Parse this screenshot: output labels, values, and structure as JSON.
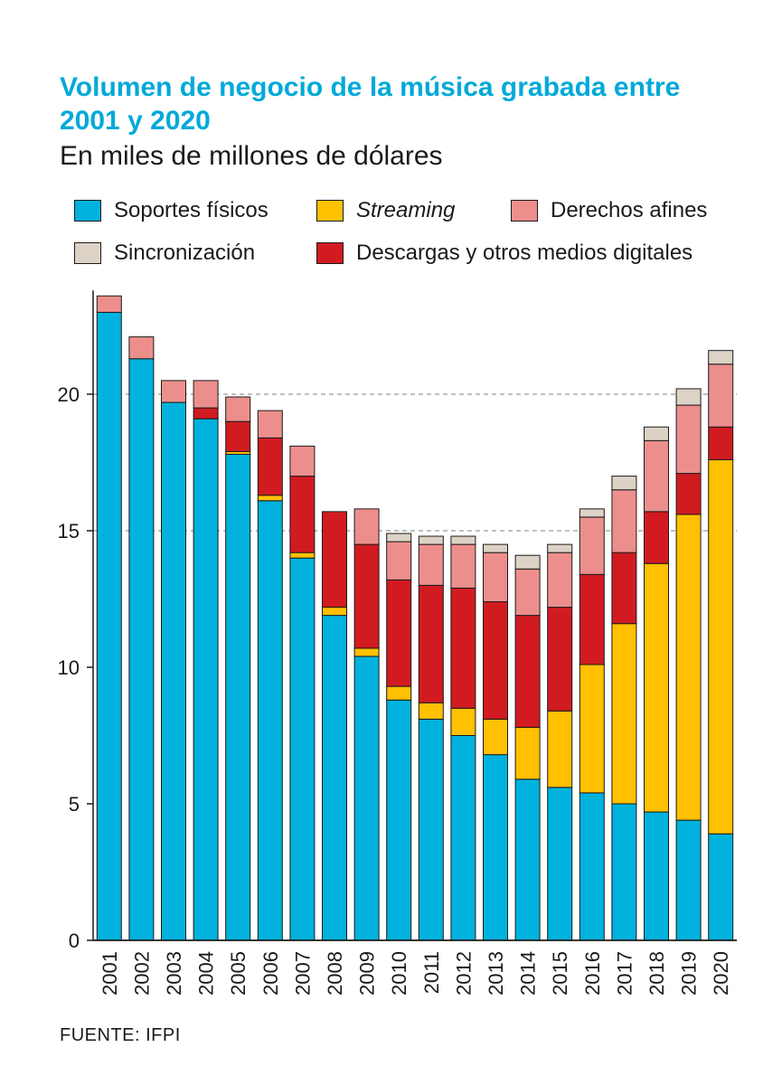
{
  "header": {
    "title": "Volumen de negocio de la música grabada entre 2001 y 2020",
    "subtitle": "En miles de millones de dólares"
  },
  "legend": {
    "physical": "Soportes físicos",
    "streaming": "Streaming",
    "rights": "Derechos afines",
    "sync": "Sincronización",
    "downloads": "Descargas y otros medios digitales"
  },
  "colors": {
    "physical": "#00b2dd",
    "streaming": "#ffc000",
    "rights": "#ec8f8c",
    "sync": "#dcd3c6",
    "downloads": "#d11b21",
    "gridline": "#999999",
    "axis": "#1a1a1a"
  },
  "source": "FUENTE: IFPI",
  "chart_data": {
    "type": "bar",
    "stacked": true,
    "title": "Volumen de negocio de la música grabada entre 2001 y 2020",
    "subtitle": "En miles de millones de dólares",
    "categories": [
      "2001",
      "2002",
      "2003",
      "2004",
      "2005",
      "2006",
      "2007",
      "2008",
      "2009",
      "2010",
      "2011",
      "2012",
      "2013",
      "2014",
      "2015",
      "2016",
      "2017",
      "2018",
      "2019",
      "2020"
    ],
    "series": [
      {
        "name": "Soportes físicos",
        "key": "physical",
        "values": [
          23.0,
          21.3,
          19.7,
          19.1,
          17.8,
          16.1,
          14.0,
          11.9,
          10.4,
          8.8,
          8.1,
          7.5,
          6.8,
          5.9,
          5.6,
          5.4,
          5.0,
          4.7,
          4.4,
          3.9
        ]
      },
      {
        "name": "Streaming",
        "key": "streaming",
        "values": [
          0,
          0,
          0,
          0,
          0.1,
          0.2,
          0.2,
          0.3,
          0.3,
          0.5,
          0.6,
          1.0,
          1.3,
          1.9,
          2.8,
          4.7,
          6.6,
          9.1,
          11.2,
          13.7
        ]
      },
      {
        "name": "Descargas y otros medios digitales",
        "key": "downloads",
        "values": [
          0,
          0,
          0,
          0.4,
          1.1,
          2.1,
          2.8,
          3.5,
          3.8,
          3.9,
          4.3,
          4.4,
          4.3,
          4.1,
          3.8,
          3.3,
          2.6,
          1.9,
          1.5,
          1.2
        ]
      },
      {
        "name": "Derechos afines",
        "key": "rights",
        "values": [
          0.6,
          0.8,
          0.8,
          1.0,
          0.9,
          1.0,
          1.1,
          0,
          1.3,
          1.4,
          1.5,
          1.6,
          1.8,
          1.7,
          2.0,
          2.1,
          2.3,
          2.6,
          2.5,
          2.3
        ]
      },
      {
        "name": "Sincronización",
        "key": "sync",
        "values": [
          0,
          0,
          0,
          0,
          0,
          0,
          0,
          0,
          0,
          0.3,
          0.3,
          0.3,
          0.3,
          0.5,
          0.3,
          0.3,
          0.5,
          0.5,
          0.6,
          0.5
        ]
      }
    ],
    "yticks": [
      0,
      5,
      10,
      15,
      20
    ],
    "ylim": [
      0,
      23.8
    ],
    "dashed_gridlines": [
      15,
      20
    ],
    "grid": "dashed at 15 and 20",
    "legend_position": "top"
  }
}
